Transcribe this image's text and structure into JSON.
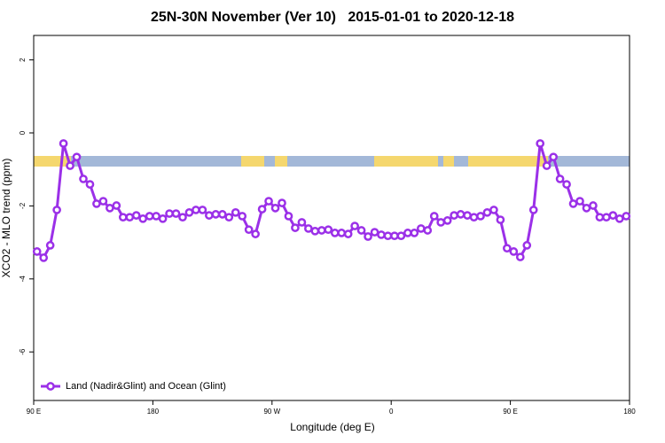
{
  "chart_data": {
    "type": "line",
    "title": "25N-30N November (Ver 10)   2015-01-01 to 2020-12-18",
    "x_label": "Longitude (deg E)",
    "y_label": "XCO2 - MLO trend (ppm)",
    "xlim": [
      90,
      540
    ],
    "xticks": [
      {
        "value": 90,
        "label": "90 E"
      },
      {
        "value": 180,
        "label": "180"
      },
      {
        "value": 270,
        "label": "90 W"
      },
      {
        "value": 360,
        "label": "0"
      },
      {
        "value": 450,
        "label": "90 E"
      },
      {
        "value": 540,
        "label": "180"
      }
    ],
    "ylim": [
      -7.33,
      2.67
    ],
    "yticks": [
      2,
      0,
      -2,
      -4,
      -6
    ],
    "legend": "bottom-left",
    "x": [
      92.5,
      97.5,
      102.5,
      107.5,
      112.5,
      117.5,
      122.5,
      127.5,
      132.5,
      137.5,
      142.5,
      147.5,
      152.5,
      157.5,
      162.5,
      167.5,
      172.5,
      177.5,
      182.5,
      187.5,
      192.5,
      197.5,
      202.5,
      207.5,
      212.5,
      217.5,
      222.5,
      227.5,
      232.5,
      237.5,
      242.5,
      247.5,
      252.5,
      257.5,
      262.5,
      267.5,
      272.5,
      277.5,
      282.5,
      287.5,
      292.5,
      297.5,
      302.5,
      307.5,
      312.5,
      317.5,
      322.5,
      327.5,
      332.5,
      337.5,
      342.5,
      347.5,
      352.5,
      357.5,
      362.5,
      367.5,
      372.5,
      377.5,
      382.5,
      387.5,
      392.5,
      397.5,
      402.5,
      407.5,
      412.5,
      417.5,
      422.5,
      427.5,
      432.5,
      437.5,
      442.5,
      447.5,
      452.5,
      457.5,
      462.5,
      467.5,
      472.5,
      477.5,
      482.5,
      487.5,
      492.5,
      497.5,
      502.5,
      507.5,
      512.5,
      517.5,
      522.5,
      527.5,
      532.5,
      537.5
    ],
    "series": [
      {
        "name": "Land (Nadir&Glint) and Ocean (Glint)",
        "color": "#9b30e8",
        "values": [
          -3.25,
          -3.42,
          -3.08,
          -2.11,
          -0.29,
          -0.9,
          -0.66,
          -1.26,
          -1.41,
          -1.94,
          -1.87,
          -2.06,
          -1.99,
          -2.31,
          -2.31,
          -2.26,
          -2.35,
          -2.28,
          -2.28,
          -2.35,
          -2.21,
          -2.21,
          -2.31,
          -2.18,
          -2.11,
          -2.11,
          -2.26,
          -2.23,
          -2.23,
          -2.31,
          -2.18,
          -2.28,
          -2.65,
          -2.77,
          -2.09,
          -1.87,
          -2.06,
          -1.92,
          -2.28,
          -2.6,
          -2.45,
          -2.62,
          -2.69,
          -2.67,
          -2.65,
          -2.74,
          -2.74,
          -2.77,
          -2.55,
          -2.67,
          -2.84,
          -2.72,
          -2.79,
          -2.82,
          -2.82,
          -2.82,
          -2.74,
          -2.74,
          -2.62,
          -2.67,
          -2.28,
          -2.45,
          -2.4,
          -2.26,
          -2.23,
          -2.26,
          -2.31,
          -2.28,
          -2.18,
          -2.11,
          -2.38,
          -3.16,
          -3.25,
          -3.4,
          -3.08,
          -2.11,
          -0.29,
          -0.9,
          -0.66,
          -1.26,
          -1.41,
          -1.94,
          -1.87,
          -2.06,
          -1.99,
          -2.31,
          -2.31,
          -2.26,
          -2.35,
          -2.28
        ]
      }
    ]
  }
}
